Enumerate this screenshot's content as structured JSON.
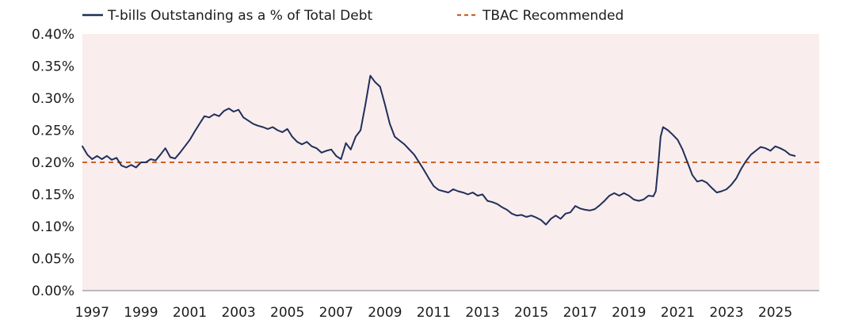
{
  "chart_data": {
    "type": "line",
    "colors": {
      "plot_background": "#f9eded",
      "series_line": "#1f2f5b",
      "reference_line": "#c8642a",
      "axis_line": "#a6a6a6"
    },
    "legend": {
      "placement": "top-left",
      "entries": [
        {
          "label": "T-bills Outstanding as a % of Total Debt",
          "style": "solid",
          "color": "#1f2f5b"
        },
        {
          "label": "TBAC Recommended",
          "style": "dashed",
          "color": "#c8642a"
        }
      ]
    },
    "ylim": [
      0,
      0.4
    ],
    "yticks": [
      {
        "value": 0.0,
        "label": "0.00%"
      },
      {
        "value": 0.05,
        "label": "0.05%"
      },
      {
        "value": 0.1,
        "label": "0.10%"
      },
      {
        "value": 0.15,
        "label": "0.15%"
      },
      {
        "value": 0.2,
        "label": "0.20%"
      },
      {
        "value": 0.25,
        "label": "0.25%"
      },
      {
        "value": 0.3,
        "label": "0.30%"
      },
      {
        "value": 0.35,
        "label": "0.35%"
      },
      {
        "value": 0.4,
        "label": "0.40%"
      }
    ],
    "xlim": [
      1996.6,
      2026.8
    ],
    "xticks": [
      {
        "value": 1997,
        "label": "1997"
      },
      {
        "value": 1999,
        "label": "1999"
      },
      {
        "value": 2001,
        "label": "2001"
      },
      {
        "value": 2003,
        "label": "2003"
      },
      {
        "value": 2005,
        "label": "2005"
      },
      {
        "value": 2007,
        "label": "2007"
      },
      {
        "value": 2009,
        "label": "2009"
      },
      {
        "value": 2011,
        "label": "2011"
      },
      {
        "value": 2013,
        "label": "2013"
      },
      {
        "value": 2015,
        "label": "2015"
      },
      {
        "value": 2017,
        "label": "2017"
      },
      {
        "value": 2019,
        "label": "2019"
      },
      {
        "value": 2021,
        "label": "2021"
      },
      {
        "value": 2023,
        "label": "2023"
      },
      {
        "value": 2025,
        "label": "2025"
      }
    ],
    "series": [
      {
        "name": "T-bills Outstanding as a % of Total Debt",
        "points": [
          [
            1996.6,
            0.225
          ],
          [
            1996.8,
            0.212
          ],
          [
            1997.0,
            0.205
          ],
          [
            1997.2,
            0.21
          ],
          [
            1997.4,
            0.205
          ],
          [
            1997.6,
            0.21
          ],
          [
            1997.8,
            0.204
          ],
          [
            1998.0,
            0.207
          ],
          [
            1998.2,
            0.195
          ],
          [
            1998.4,
            0.192
          ],
          [
            1998.6,
            0.196
          ],
          [
            1998.8,
            0.192
          ],
          [
            1999.0,
            0.2
          ],
          [
            1999.2,
            0.2
          ],
          [
            1999.4,
            0.205
          ],
          [
            1999.6,
            0.203
          ],
          [
            1999.8,
            0.212
          ],
          [
            2000.0,
            0.222
          ],
          [
            2000.2,
            0.208
          ],
          [
            2000.4,
            0.206
          ],
          [
            2000.6,
            0.215
          ],
          [
            2000.8,
            0.225
          ],
          [
            2001.0,
            0.235
          ],
          [
            2001.2,
            0.248
          ],
          [
            2001.4,
            0.26
          ],
          [
            2001.6,
            0.272
          ],
          [
            2001.8,
            0.27
          ],
          [
            2002.0,
            0.275
          ],
          [
            2002.2,
            0.272
          ],
          [
            2002.4,
            0.28
          ],
          [
            2002.6,
            0.284
          ],
          [
            2002.8,
            0.279
          ],
          [
            2003.0,
            0.282
          ],
          [
            2003.2,
            0.27
          ],
          [
            2003.4,
            0.265
          ],
          [
            2003.6,
            0.26
          ],
          [
            2003.8,
            0.257
          ],
          [
            2004.0,
            0.255
          ],
          [
            2004.2,
            0.252
          ],
          [
            2004.4,
            0.255
          ],
          [
            2004.6,
            0.25
          ],
          [
            2004.8,
            0.247
          ],
          [
            2005.0,
            0.252
          ],
          [
            2005.2,
            0.24
          ],
          [
            2005.4,
            0.232
          ],
          [
            2005.6,
            0.228
          ],
          [
            2005.8,
            0.232
          ],
          [
            2006.0,
            0.225
          ],
          [
            2006.2,
            0.222
          ],
          [
            2006.4,
            0.215
          ],
          [
            2006.6,
            0.218
          ],
          [
            2006.8,
            0.22
          ],
          [
            2007.0,
            0.21
          ],
          [
            2007.2,
            0.205
          ],
          [
            2007.4,
            0.23
          ],
          [
            2007.6,
            0.22
          ],
          [
            2007.8,
            0.24
          ],
          [
            2008.0,
            0.25
          ],
          [
            2008.2,
            0.29
          ],
          [
            2008.4,
            0.335
          ],
          [
            2008.6,
            0.325
          ],
          [
            2008.8,
            0.318
          ],
          [
            2009.0,
            0.29
          ],
          [
            2009.2,
            0.26
          ],
          [
            2009.4,
            0.24
          ],
          [
            2009.6,
            0.234
          ],
          [
            2009.8,
            0.228
          ],
          [
            2010.0,
            0.22
          ],
          [
            2010.2,
            0.212
          ],
          [
            2010.4,
            0.2
          ],
          [
            2010.6,
            0.188
          ],
          [
            2010.8,
            0.175
          ],
          [
            2011.0,
            0.163
          ],
          [
            2011.2,
            0.157
          ],
          [
            2011.4,
            0.155
          ],
          [
            2011.6,
            0.153
          ],
          [
            2011.8,
            0.158
          ],
          [
            2012.0,
            0.155
          ],
          [
            2012.2,
            0.153
          ],
          [
            2012.4,
            0.15
          ],
          [
            2012.6,
            0.153
          ],
          [
            2012.8,
            0.148
          ],
          [
            2013.0,
            0.15
          ],
          [
            2013.2,
            0.14
          ],
          [
            2013.4,
            0.138
          ],
          [
            2013.6,
            0.135
          ],
          [
            2013.8,
            0.13
          ],
          [
            2014.0,
            0.126
          ],
          [
            2014.2,
            0.12
          ],
          [
            2014.4,
            0.117
          ],
          [
            2014.6,
            0.118
          ],
          [
            2014.8,
            0.115
          ],
          [
            2015.0,
            0.117
          ],
          [
            2015.2,
            0.114
          ],
          [
            2015.4,
            0.11
          ],
          [
            2015.6,
            0.103
          ],
          [
            2015.8,
            0.112
          ],
          [
            2016.0,
            0.117
          ],
          [
            2016.2,
            0.112
          ],
          [
            2016.4,
            0.12
          ],
          [
            2016.6,
            0.122
          ],
          [
            2016.8,
            0.132
          ],
          [
            2017.0,
            0.128
          ],
          [
            2017.2,
            0.126
          ],
          [
            2017.4,
            0.125
          ],
          [
            2017.6,
            0.127
          ],
          [
            2017.8,
            0.133
          ],
          [
            2018.0,
            0.14
          ],
          [
            2018.2,
            0.148
          ],
          [
            2018.4,
            0.152
          ],
          [
            2018.6,
            0.148
          ],
          [
            2018.8,
            0.152
          ],
          [
            2019.0,
            0.148
          ],
          [
            2019.2,
            0.142
          ],
          [
            2019.4,
            0.14
          ],
          [
            2019.6,
            0.142
          ],
          [
            2019.8,
            0.148
          ],
          [
            2020.0,
            0.147
          ],
          [
            2020.1,
            0.155
          ],
          [
            2020.2,
            0.195
          ],
          [
            2020.3,
            0.24
          ],
          [
            2020.4,
            0.255
          ],
          [
            2020.6,
            0.25
          ],
          [
            2020.8,
            0.243
          ],
          [
            2021.0,
            0.235
          ],
          [
            2021.2,
            0.22
          ],
          [
            2021.4,
            0.2
          ],
          [
            2021.6,
            0.18
          ],
          [
            2021.8,
            0.17
          ],
          [
            2022.0,
            0.172
          ],
          [
            2022.2,
            0.168
          ],
          [
            2022.4,
            0.16
          ],
          [
            2022.6,
            0.153
          ],
          [
            2022.8,
            0.155
          ],
          [
            2023.0,
            0.158
          ],
          [
            2023.2,
            0.165
          ],
          [
            2023.4,
            0.175
          ],
          [
            2023.6,
            0.19
          ],
          [
            2023.8,
            0.202
          ],
          [
            2024.0,
            0.212
          ],
          [
            2024.2,
            0.218
          ],
          [
            2024.4,
            0.224
          ],
          [
            2024.6,
            0.222
          ],
          [
            2024.8,
            0.218
          ],
          [
            2025.0,
            0.225
          ],
          [
            2025.2,
            0.222
          ],
          [
            2025.4,
            0.218
          ],
          [
            2025.6,
            0.212
          ],
          [
            2025.8,
            0.21
          ]
        ]
      },
      {
        "name": "TBAC Recommended",
        "points": [
          [
            1996.6,
            0.2
          ],
          [
            2026.8,
            0.2
          ]
        ]
      }
    ]
  }
}
